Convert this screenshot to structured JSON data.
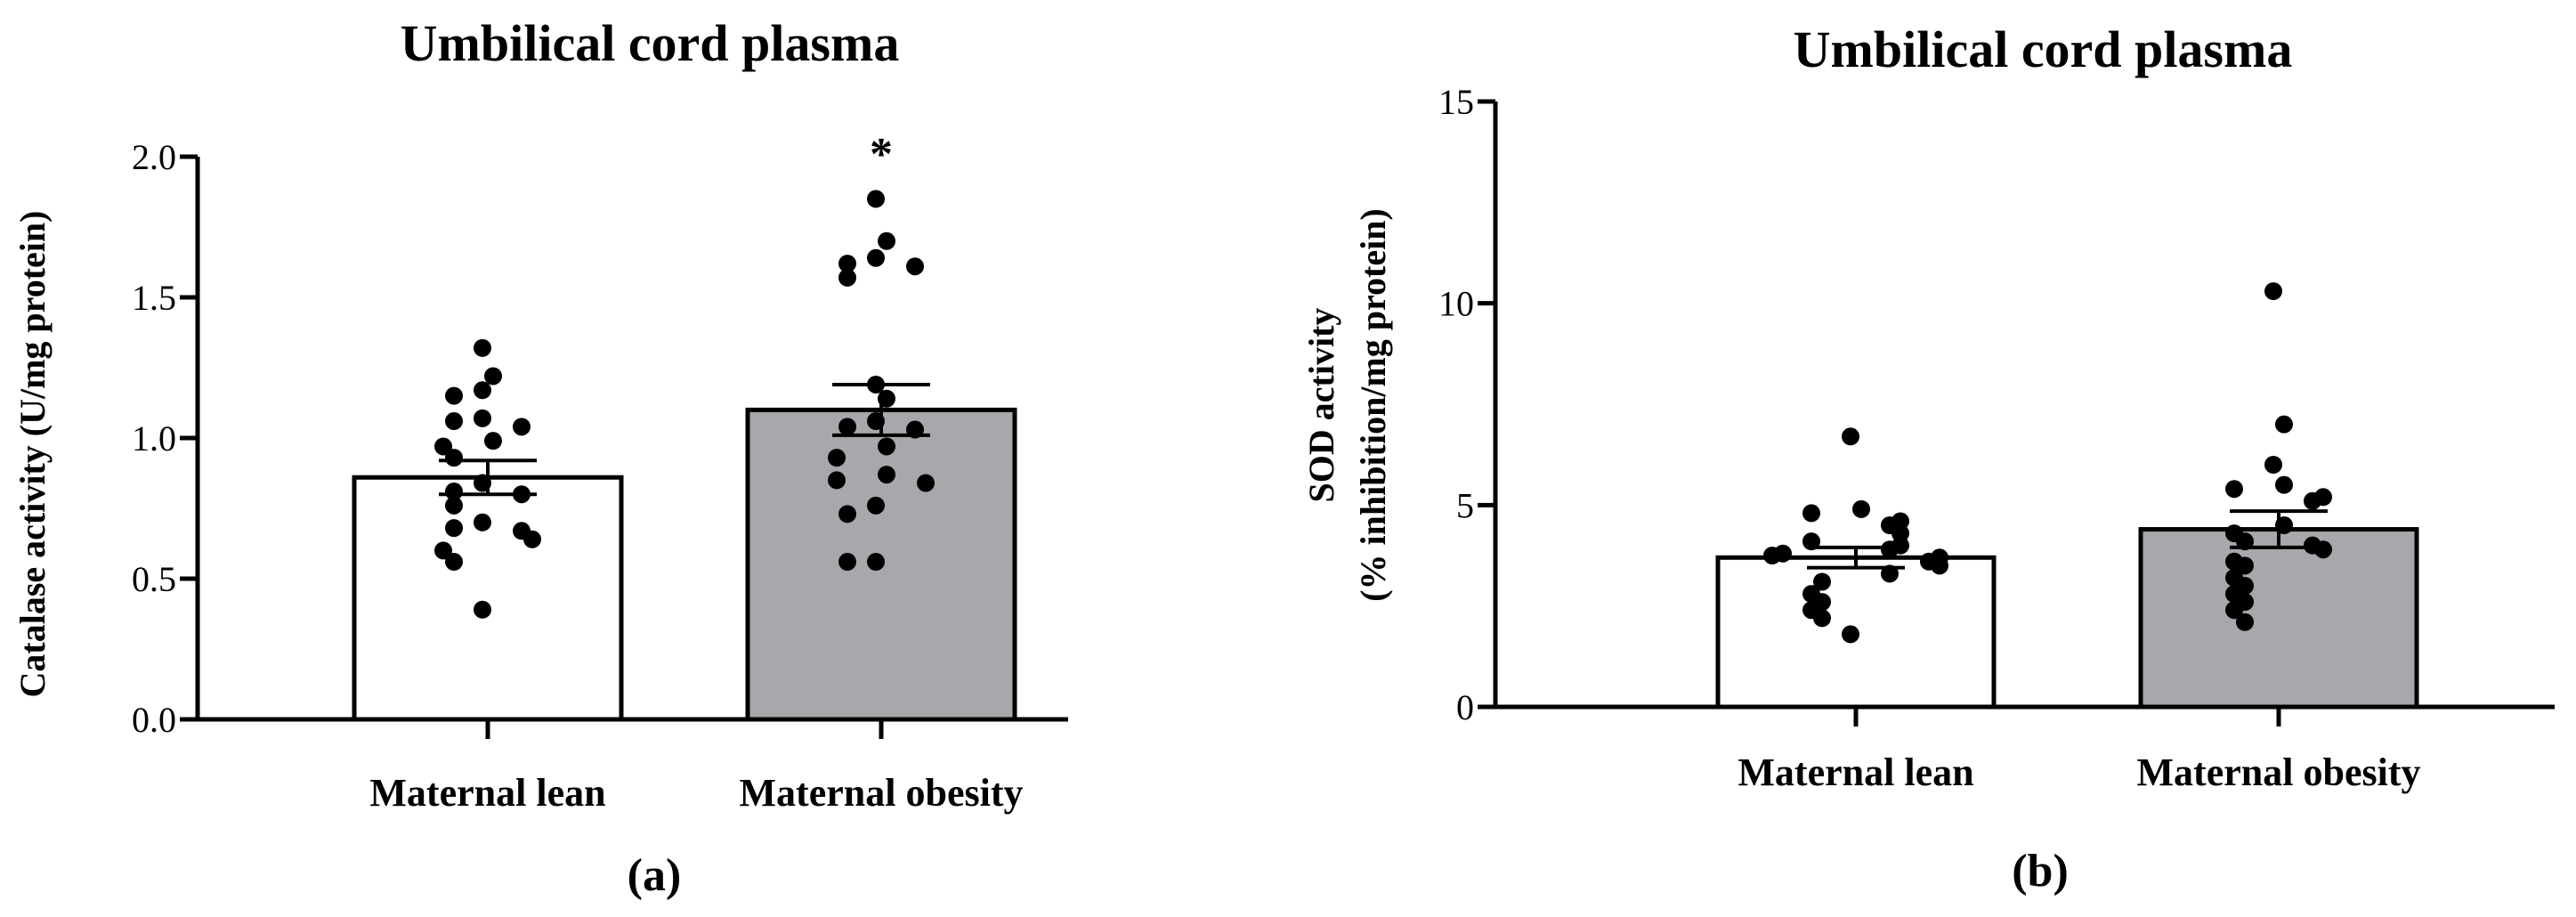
{
  "chart_data": [
    {
      "type": "bar",
      "title": "Umbilical cord plasma",
      "panel_label": "(a)",
      "xlabel": "",
      "ylabel": "Catalase activity (U/mg protein)",
      "ylim": [
        0,
        2.0
      ],
      "yticks": [
        0.0,
        0.5,
        1.0,
        1.5,
        2.0
      ],
      "ytick_labels": [
        "0.0",
        "0.5",
        "1.0",
        "1.5",
        "2.0"
      ],
      "categories": [
        "Maternal lean",
        "Maternal obesity"
      ],
      "values": [
        0.86,
        1.1
      ],
      "sem": [
        0.06,
        0.09
      ],
      "bar_colors": [
        "#ffffff",
        "#a8a7ab"
      ],
      "significance": [
        "",
        "*"
      ],
      "points": [
        [
          1.32,
          1.22,
          1.17,
          1.15,
          1.07,
          1.06,
          1.04,
          0.99,
          0.97,
          0.93,
          0.84,
          0.81,
          0.8,
          0.76,
          0.7,
          0.68,
          0.67,
          0.64,
          0.6,
          0.56,
          0.39
        ],
        [
          1.85,
          1.7,
          1.64,
          1.62,
          1.61,
          1.57,
          1.19,
          1.14,
          1.06,
          1.04,
          1.03,
          0.97,
          0.93,
          0.87,
          0.85,
          0.84,
          0.76,
          0.73,
          0.56,
          0.56
        ]
      ]
    },
    {
      "type": "bar",
      "title": "Umbilical cord plasma",
      "panel_label": "(b)",
      "xlabel": "",
      "ylabel": "SOD activity",
      "ylabel_line2": "(% inhibition/mg protein)",
      "ylim": [
        0,
        15
      ],
      "yticks": [
        0,
        5,
        10,
        15
      ],
      "ytick_labels": [
        "0",
        "5",
        "10",
        "15"
      ],
      "categories": [
        "Maternal lean",
        "Maternal obesity"
      ],
      "values": [
        3.7,
        4.4
      ],
      "sem": [
        0.25,
        0.45
      ],
      "bar_colors": [
        "#ffffff",
        "#a8a7ab"
      ],
      "significance": [
        "",
        ""
      ],
      "points": [
        [
          6.7,
          4.9,
          4.8,
          4.6,
          4.5,
          4.3,
          4.1,
          4.0,
          3.9,
          3.8,
          3.75,
          3.7,
          3.6,
          3.5,
          3.3,
          3.1,
          2.8,
          2.6,
          2.4,
          2.2,
          1.8
        ],
        [
          10.3,
          7.0,
          6.0,
          5.5,
          5.4,
          5.2,
          5.1,
          4.5,
          4.3,
          4.1,
          4.0,
          3.9,
          3.6,
          3.5,
          3.2,
          3.0,
          2.8,
          2.6,
          2.4,
          2.1
        ]
      ]
    }
  ]
}
